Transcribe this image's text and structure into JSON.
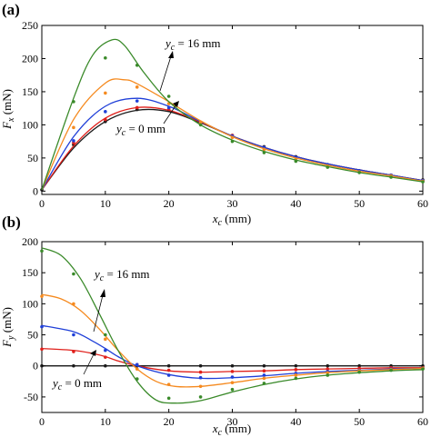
{
  "chart_data": [
    {
      "type": "line",
      "panel_label": "(a)",
      "xlabel_main": "x",
      "xlabel_sub": "c",
      "xlabel_unit": " (mm)",
      "ylabel_main": "F",
      "ylabel_sub": "x",
      "ylabel_unit": " (mN)",
      "xlim": [
        0,
        60
      ],
      "ylim": [
        -5,
        250
      ],
      "xticks": [
        0,
        10,
        20,
        30,
        40,
        50,
        60
      ],
      "yticks": [
        0,
        50,
        100,
        150,
        200,
        250
      ],
      "tick_labels_x": [
        "0",
        "10",
        "20",
        "30",
        "40",
        "50",
        "60"
      ],
      "tick_labels_y": [
        "0",
        "50",
        "100",
        "150",
        "200",
        "250"
      ],
      "grid": false,
      "annotations": [
        {
          "main": "y",
          "sub": "c",
          "rest": " = 16 mm",
          "text": "yc = 16 mm"
        },
        {
          "main": "y",
          "sub": "c",
          "rest": " = 0 mm",
          "text": "yc = 0 mm"
        }
      ],
      "series": [
        {
          "color": "#1a1a1a",
          "x": [
            0,
            5,
            10,
            15,
            20,
            25,
            30,
            35,
            40,
            45,
            50,
            55,
            60
          ],
          "y": [
            2,
            65,
            105,
            122,
            120,
            103,
            83,
            66,
            52,
            41,
            32,
            24,
            16
          ],
          "points_x": [
            0,
            5,
            10,
            15,
            20,
            25,
            30,
            35,
            40,
            45,
            50,
            55,
            60
          ],
          "points_y": [
            2,
            70,
            105,
            123,
            122,
            103,
            84,
            67,
            52,
            40,
            31,
            24,
            17
          ]
        },
        {
          "color": "#e0201b",
          "x": [
            0,
            5,
            10,
            15,
            20,
            25,
            30,
            35,
            40,
            45,
            50,
            55,
            60
          ],
          "y": [
            2,
            68,
            110,
            126,
            122,
            104,
            83,
            66,
            52,
            41,
            32,
            24,
            16
          ],
          "points_x": [
            5,
            10,
            15,
            20,
            25,
            30,
            35,
            40,
            45,
            50,
            55,
            60
          ],
          "points_y": [
            73,
            108,
            126,
            124,
            104,
            84,
            66,
            51,
            40,
            31,
            24,
            16
          ]
        },
        {
          "color": "#1f3fd8",
          "x": [
            0,
            5,
            10,
            15,
            20,
            25,
            30,
            35,
            40,
            45,
            50,
            55,
            60
          ],
          "y": [
            2,
            82,
            128,
            140,
            128,
            105,
            83,
            66,
            52,
            41,
            32,
            24,
            16
          ],
          "points_x": [
            5,
            10,
            15,
            20,
            25,
            30,
            35,
            40,
            45,
            50,
            55,
            60
          ],
          "points_y": [
            76,
            120,
            136,
            126,
            104,
            83,
            66,
            51,
            40,
            31,
            24,
            16
          ]
        },
        {
          "color": "#f58a1f",
          "x": [
            0,
            5,
            10,
            13,
            15,
            20,
            25,
            30,
            35,
            40,
            45,
            50,
            55,
            60
          ],
          "y": [
            2,
            108,
            163,
            168,
            162,
            135,
            106,
            82,
            64,
            50,
            39,
            30,
            23,
            15
          ],
          "points_x": [
            5,
            10,
            15,
            20,
            25,
            30,
            35,
            40,
            45,
            50,
            55,
            60
          ],
          "points_y": [
            96,
            148,
            157,
            132,
            104,
            81,
            63,
            48,
            38,
            29,
            23,
            15
          ]
        },
        {
          "color": "#3a8a2a",
          "x": [
            0,
            5,
            8,
            11,
            13,
            16,
            20,
            25,
            30,
            35,
            40,
            45,
            50,
            55,
            60
          ],
          "y": [
            2,
            140,
            205,
            228,
            220,
            180,
            135,
            100,
            77,
            60,
            47,
            37,
            28,
            21,
            14
          ],
          "points_x": [
            5,
            10,
            15,
            20,
            25,
            30,
            35,
            40,
            45,
            50,
            55,
            60
          ],
          "points_y": [
            135,
            201,
            190,
            143,
            100,
            75,
            58,
            45,
            36,
            28,
            21,
            14
          ]
        }
      ]
    },
    {
      "type": "line",
      "panel_label": "(b)",
      "xlabel_main": "x",
      "xlabel_sub": "c",
      "xlabel_unit": " (mm)",
      "ylabel_main": "F",
      "ylabel_sub": "y",
      "ylabel_unit": " (mN)",
      "xlim": [
        0,
        60
      ],
      "ylim": [
        -75,
        200
      ],
      "xticks": [
        0,
        10,
        20,
        30,
        40,
        50,
        60
      ],
      "yticks": [
        -50,
        0,
        50,
        100,
        150,
        200
      ],
      "tick_labels_x": [
        "0",
        "10",
        "20",
        "30",
        "40",
        "50",
        "60"
      ],
      "tick_labels_y": [
        "-50",
        "0",
        "50",
        "100",
        "150",
        "200"
      ],
      "grid": false,
      "zero_line": true,
      "annotations": [
        {
          "main": "y",
          "sub": "c",
          "rest": " = 16 mm",
          "text": "yc = 16 mm"
        },
        {
          "main": "y",
          "sub": "c",
          "rest": " = 0 mm",
          "text": "yc = 0 mm"
        }
      ],
      "series": [
        {
          "color": "#1a1a1a",
          "x": [
            0,
            10,
            20,
            30,
            40,
            50,
            60
          ],
          "y": [
            0,
            0,
            0,
            0,
            0,
            0,
            0
          ],
          "points_x": [
            0,
            5,
            10,
            15,
            20,
            25,
            30,
            35,
            40,
            45,
            50,
            55,
            60
          ],
          "points_y": [
            0,
            0,
            0,
            0,
            0,
            0,
            0,
            0,
            0,
            0,
            0,
            0,
            0
          ]
        },
        {
          "color": "#e0201b",
          "x": [
            0,
            5,
            8,
            10,
            12,
            15,
            20,
            25,
            30,
            35,
            40,
            45,
            50,
            55,
            60
          ],
          "y": [
            28,
            25,
            20,
            15,
            8,
            0,
            -8,
            -10,
            -9,
            -8,
            -6,
            -5,
            -4,
            -3,
            -3
          ],
          "points_x": [
            0,
            5,
            10,
            15,
            20,
            25,
            30,
            35,
            40,
            45,
            50,
            55,
            60
          ],
          "points_y": [
            27,
            23,
            14,
            2,
            -7,
            -10,
            -9,
            -8,
            -6,
            -5,
            -4,
            -3,
            -3
          ]
        },
        {
          "color": "#1f3fd8",
          "x": [
            0,
            5,
            8,
            10,
            12,
            15,
            20,
            25,
            30,
            35,
            40,
            45,
            50,
            55,
            60
          ],
          "y": [
            65,
            55,
            40,
            28,
            15,
            0,
            -14,
            -20,
            -19,
            -16,
            -12,
            -9,
            -7,
            -5,
            -4
          ],
          "points_x": [
            0,
            5,
            10,
            15,
            20,
            25,
            30,
            35,
            40,
            45,
            50,
            55,
            60
          ],
          "points_y": [
            63,
            50,
            25,
            2,
            -15,
            -19,
            -18,
            -15,
            -12,
            -9,
            -7,
            -5,
            -4
          ]
        },
        {
          "color": "#f58a1f",
          "x": [
            0,
            3,
            6,
            9,
            12,
            15,
            18,
            21,
            25,
            30,
            35,
            40,
            45,
            50,
            55,
            60
          ],
          "y": [
            115,
            108,
            90,
            60,
            25,
            -5,
            -25,
            -33,
            -33,
            -27,
            -20,
            -15,
            -11,
            -8,
            -6,
            -4
          ],
          "points_x": [
            0,
            5,
            10,
            15,
            20,
            25,
            30,
            35,
            40,
            45,
            50,
            55,
            60
          ],
          "points_y": [
            112,
            100,
            43,
            -5,
            -30,
            -33,
            -27,
            -20,
            -15,
            -11,
            -8,
            -6,
            -4
          ]
        },
        {
          "color": "#3a8a2a",
          "x": [
            0,
            3,
            6,
            9,
            12,
            15,
            18,
            21,
            25,
            30,
            35,
            40,
            45,
            50,
            55,
            60
          ],
          "y": [
            190,
            178,
            142,
            85,
            25,
            -25,
            -55,
            -60,
            -56,
            -42,
            -30,
            -21,
            -15,
            -11,
            -8,
            -6
          ],
          "points_x": [
            0,
            5,
            10,
            15,
            20,
            25,
            30,
            35,
            40,
            45,
            50,
            55,
            60
          ],
          "points_y": [
            185,
            148,
            50,
            -21,
            -52,
            -50,
            -38,
            -28,
            -20,
            -15,
            -10,
            -7,
            -5
          ]
        }
      ]
    }
  ]
}
